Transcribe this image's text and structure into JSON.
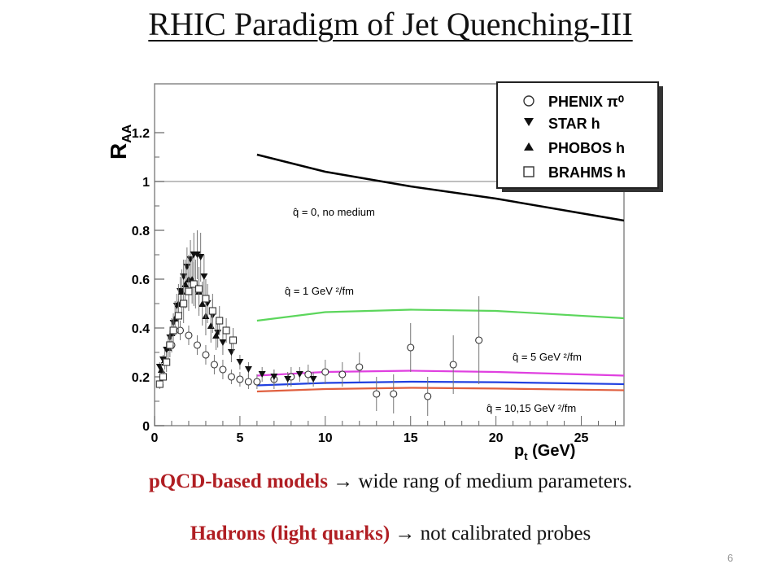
{
  "slide": {
    "title": "RHIC Paradigm of  Jet Quenching-III",
    "bullet1_red": "pQCD-based models",
    "bullet1_arrow": " → ",
    "bullet1_text": "wide rang of  medium parameters.",
    "bullet2_red": "Hadrons (light quarks)",
    "bullet2_arrow": " → ",
    "bullet2_text": "not calibrated probes",
    "page_number": "6"
  },
  "chart_data": {
    "type": "scatter",
    "title": "",
    "xlabel": "p",
    "xlabel_sub": "t",
    "xlabel_unit": " (GeV)",
    "ylabel": "R",
    "ylabel_sub": "AA",
    "xlim": [
      0,
      27.5
    ],
    "ylim": [
      0,
      1.4
    ],
    "x_ticks": [
      "0",
      "5",
      "10",
      "15",
      "20",
      "25"
    ],
    "y_ticks": [
      "0",
      "0.2",
      "0.4",
      "0.6",
      "0.8",
      "1",
      "1.2"
    ],
    "reference_line": 1,
    "legend_position": "top-right",
    "legend": [
      {
        "name": "PHENIX π⁰",
        "marker": "open-circle"
      },
      {
        "name": "STAR h",
        "marker": "filled-down-triangle"
      },
      {
        "name": "PHOBOS h",
        "marker": "filled-up-triangle"
      },
      {
        "name": "BRAHMS h",
        "marker": "open-square"
      }
    ],
    "model_curves": [
      {
        "label": "q̂ = 0, no medium",
        "color": "#000000",
        "x": [
          6,
          10,
          15,
          20,
          27.5
        ],
        "y": [
          1.11,
          1.04,
          0.98,
          0.93,
          0.84
        ]
      },
      {
        "label": "q̂ = 1 GeV ²/fm",
        "color": "#5cd65c",
        "x": [
          6,
          10,
          15,
          20,
          27.5
        ],
        "y": [
          0.43,
          0.465,
          0.475,
          0.47,
          0.44
        ]
      },
      {
        "label": "q̂ = 5 GeV ²/fm",
        "color": "#e040e0",
        "x": [
          6,
          10,
          15,
          20,
          27.5
        ],
        "y": [
          0.205,
          0.22,
          0.225,
          0.22,
          0.205
        ]
      },
      {
        "label": "",
        "color": "#2040e0",
        "x": [
          6,
          10,
          15,
          20,
          27.5
        ],
        "y": [
          0.165,
          0.175,
          0.18,
          0.178,
          0.17
        ]
      },
      {
        "label": "q̂ = 10,15 GeV ²/fm",
        "color": "#e06040",
        "x": [
          6,
          10,
          15,
          20,
          27.5
        ],
        "y": [
          0.14,
          0.15,
          0.155,
          0.152,
          0.145
        ]
      }
    ],
    "series": [
      {
        "key": "phenix",
        "marker": "open-circle",
        "x": [
          1.0,
          1.5,
          2.0,
          2.5,
          3.0,
          3.5,
          4.0,
          4.5,
          5.0,
          5.5,
          6.0,
          7.0,
          8.0,
          9.0,
          10.0,
          11.0,
          12.0,
          13.0,
          14.0,
          15.0,
          16.0,
          17.5,
          19.0
        ],
        "y": [
          0.33,
          0.39,
          0.37,
          0.33,
          0.29,
          0.25,
          0.23,
          0.2,
          0.19,
          0.18,
          0.18,
          0.19,
          0.2,
          0.21,
          0.22,
          0.21,
          0.24,
          0.13,
          0.13,
          0.32,
          0.12,
          0.25,
          0.35
        ],
        "err": [
          0.03,
          0.04,
          0.04,
          0.04,
          0.04,
          0.04,
          0.04,
          0.03,
          0.03,
          0.03,
          0.03,
          0.04,
          0.04,
          0.04,
          0.05,
          0.05,
          0.06,
          0.07,
          0.08,
          0.1,
          0.08,
          0.12,
          0.18
        ]
      },
      {
        "key": "star",
        "marker": "filled-down-triangle",
        "x": [
          0.3,
          0.5,
          0.7,
          0.9,
          1.1,
          1.3,
          1.5,
          1.7,
          1.9,
          2.1,
          2.3,
          2.5,
          2.7,
          2.9,
          3.1,
          3.4,
          3.7,
          4.0,
          4.5,
          5.0,
          5.5,
          6.3,
          7.0,
          7.8,
          8.5,
          9.3
        ],
        "y": [
          0.24,
          0.27,
          0.31,
          0.36,
          0.42,
          0.49,
          0.55,
          0.61,
          0.65,
          0.68,
          0.7,
          0.7,
          0.69,
          0.61,
          0.5,
          0.45,
          0.38,
          0.34,
          0.3,
          0.26,
          0.23,
          0.21,
          0.2,
          0.19,
          0.21,
          0.19
        ],
        "err": [
          0.02,
          0.02,
          0.03,
          0.03,
          0.04,
          0.05,
          0.06,
          0.07,
          0.08,
          0.08,
          0.09,
          0.1,
          0.1,
          0.09,
          0.08,
          0.07,
          0.06,
          0.05,
          0.04,
          0.03,
          0.03,
          0.03,
          0.03,
          0.03,
          0.03,
          0.03
        ]
      },
      {
        "key": "phobos",
        "marker": "filled-up-triangle",
        "x": [
          0.4,
          0.6,
          0.8,
          1.0,
          1.2,
          1.4,
          1.6,
          1.8,
          2.0,
          2.2,
          2.4,
          2.6,
          2.8,
          3.0,
          3.3,
          3.6
        ],
        "y": [
          0.23,
          0.27,
          0.32,
          0.38,
          0.44,
          0.5,
          0.55,
          0.58,
          0.6,
          0.6,
          0.58,
          0.55,
          0.5,
          0.45,
          0.41,
          0.37
        ],
        "err": [
          0.03,
          0.04,
          0.05,
          0.06,
          0.07,
          0.08,
          0.09,
          0.1,
          0.1,
          0.1,
          0.1,
          0.1,
          0.09,
          0.08,
          0.07,
          0.06
        ]
      },
      {
        "key": "brahms",
        "marker": "open-square",
        "x": [
          0.3,
          0.5,
          0.7,
          0.9,
          1.1,
          1.4,
          1.7,
          2.0,
          2.3,
          2.6,
          3.0,
          3.4,
          3.8,
          4.2,
          4.6
        ],
        "y": [
          0.17,
          0.2,
          0.26,
          0.33,
          0.39,
          0.45,
          0.5,
          0.55,
          0.58,
          0.56,
          0.52,
          0.47,
          0.43,
          0.39,
          0.35
        ],
        "err": [
          0.02,
          0.03,
          0.04,
          0.05,
          0.06,
          0.07,
          0.08,
          0.08,
          0.09,
          0.09,
          0.08,
          0.07,
          0.06,
          0.05,
          0.05
        ]
      }
    ]
  }
}
